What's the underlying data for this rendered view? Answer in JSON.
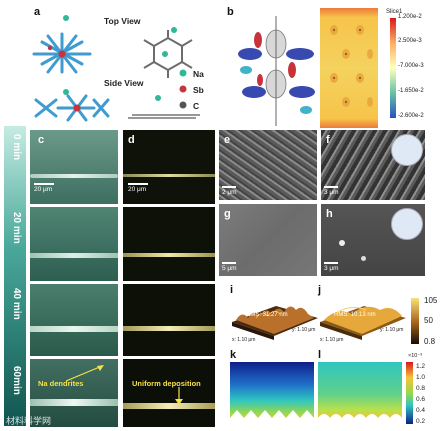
{
  "panel_labels": {
    "a": "a",
    "b": "b",
    "c": "c",
    "d": "d",
    "e": "e",
    "f": "f",
    "g": "g",
    "h": "h",
    "i": "i",
    "j": "j",
    "k": "k",
    "l": "l"
  },
  "panel_a": {
    "top_view": "Top View",
    "side_view": "Side View",
    "legend": [
      {
        "label": "Na",
        "color": "#2fb89a"
      },
      {
        "label": "Sb",
        "color": "#c8323a"
      },
      {
        "label": "C",
        "color": "#555555"
      }
    ]
  },
  "panel_b": {
    "colorbar_title": "Slice1",
    "colorbar_ticks": [
      "1.200e-2",
      "2.500e-3",
      "-7.000e-3",
      "-1.650e-2",
      "-2.600e-2"
    ]
  },
  "timeline": {
    "labels": [
      "0 min",
      "20 min",
      "40 min",
      "60min"
    ]
  },
  "panel_c": {
    "scale": "20 μm",
    "annotation": "Na dendrites"
  },
  "panel_d": {
    "scale": "20 μm",
    "annotation": "Uniform deposition"
  },
  "panel_e": {
    "scale": "2 μm"
  },
  "panel_f": {
    "scale": "3 μm"
  },
  "panel_g": {
    "scale": "5 μm"
  },
  "panel_h": {
    "scale": "3 μm"
  },
  "panel_i": {
    "rms": "RMS: 31.27 nm",
    "x_axis": "x: 1.10 μm",
    "y_axis": "y: 1.10 μm"
  },
  "panel_j": {
    "rms": "RMS: 10.13 nm",
    "x_axis": "x: 1.10 μm",
    "y_axis": "y: 1.10 μm"
  },
  "afm_colorbar": {
    "ticks": [
      "105",
      "50",
      "0.8"
    ]
  },
  "kl_colorbar": {
    "exponent": "×10⁻³",
    "ticks": [
      "1.2",
      "1.0",
      "0.8",
      "0.6",
      "0.4",
      "0.2"
    ]
  },
  "watermark": "材料科学网"
}
